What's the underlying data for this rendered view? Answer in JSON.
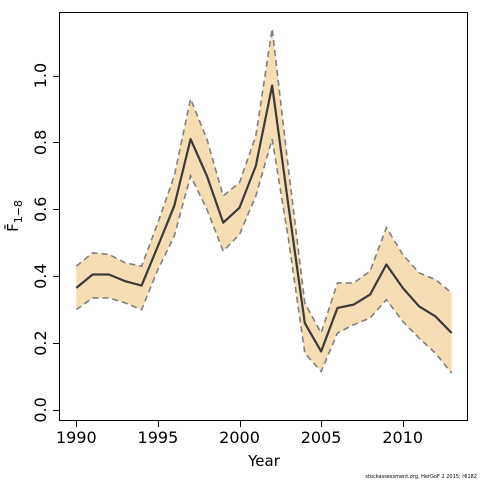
{
  "chart_data": {
    "type": "line",
    "title": "",
    "xlabel": "Year",
    "ylabel": "F̄",
    "ylabel_subscript": "1−8",
    "xlim": [
      1989,
      2014
    ],
    "ylim": [
      -0.03,
      1.19
    ],
    "x_ticks": [
      1990,
      1995,
      2000,
      2005,
      2010
    ],
    "y_ticks": [
      0.0,
      0.2,
      0.4,
      0.6,
      0.8,
      1.0
    ],
    "y_tick_labels": [
      "0.0",
      "0.2",
      "0.4",
      "0.6",
      "0.8",
      "1.0"
    ],
    "grid": false,
    "legend": "none",
    "colors": {
      "band": "#f5deb3",
      "estimate": "#3a3a3a",
      "bounds": "#7f7f7f"
    },
    "x": [
      1990,
      1991,
      1992,
      1993,
      1994,
      1995,
      1996,
      1997,
      1998,
      1999,
      2000,
      2001,
      2002,
      2003,
      2004,
      2005,
      2006,
      2007,
      2008,
      2009,
      2010,
      2011,
      2012,
      2013
    ],
    "series": [
      {
        "values": [
          0.365,
          0.405,
          0.405,
          0.385,
          0.372,
          0.49,
          0.61,
          0.81,
          0.7,
          0.56,
          0.605,
          0.73,
          0.97,
          0.61,
          0.26,
          0.175,
          0.305,
          0.315,
          0.345,
          0.435,
          0.365,
          0.31,
          0.28,
          0.23
        ],
        "style": "solid"
      },
      {
        "values": [
          0.43,
          0.47,
          0.465,
          0.44,
          0.43,
          0.56,
          0.7,
          0.93,
          0.81,
          0.64,
          0.68,
          0.82,
          1.14,
          0.72,
          0.32,
          0.23,
          0.38,
          0.38,
          0.415,
          0.545,
          0.465,
          0.41,
          0.39,
          0.35
        ],
        "style": "dashed"
      },
      {
        "values": [
          0.3,
          0.335,
          0.335,
          0.32,
          0.3,
          0.42,
          0.52,
          0.7,
          0.6,
          0.475,
          0.525,
          0.64,
          0.81,
          0.51,
          0.17,
          0.115,
          0.23,
          0.255,
          0.275,
          0.33,
          0.265,
          0.215,
          0.17,
          0.11
        ],
        "style": "dashed"
      }
    ]
  },
  "credit": "stockassessment.org, HerGoF  2 2015; r6182"
}
